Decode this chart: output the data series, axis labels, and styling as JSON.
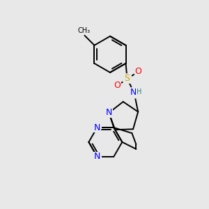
{
  "background_color": "#e8e8e8",
  "atom_colors": {
    "C": "#000000",
    "N": "#0000ff",
    "S": "#ccaa00",
    "O": "#ff0000",
    "H": "#208080"
  },
  "bond_lw": 1.4,
  "figsize": [
    3.0,
    3.0
  ],
  "dpi": 100,
  "scale": 1.0
}
